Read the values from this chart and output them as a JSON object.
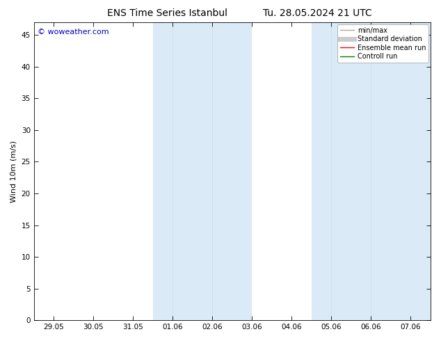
{
  "title_left": "ENS Time Series Istanbul",
  "title_right": "Tu. 28.05.2024 21 UTC",
  "ylabel": "Wind 10m (m/s)",
  "watermark": "© woweather.com",
  "ylim": [
    0,
    47
  ],
  "yticks": [
    0,
    5,
    10,
    15,
    20,
    25,
    30,
    35,
    40,
    45
  ],
  "xtick_labels": [
    "29.05",
    "30.05",
    "31.05",
    "01.06",
    "02.06",
    "03.06",
    "04.06",
    "05.06",
    "06.06",
    "07.06"
  ],
  "x_values": [
    0,
    1,
    2,
    3,
    4,
    5,
    6,
    7,
    8,
    9
  ],
  "xlim": [
    -0.5,
    9.5
  ],
  "shaded_bands": [
    {
      "x_start": 2.5,
      "x_end": 5.0
    },
    {
      "x_start": 6.5,
      "x_end": 9.5
    }
  ],
  "shade_color": "#daeaf7",
  "background_color": "#ffffff",
  "legend_entries": [
    {
      "label": "min/max",
      "color": "#aaaaaa",
      "lw": 1.0
    },
    {
      "label": "Standard deviation",
      "color": "#cccccc",
      "lw": 5
    },
    {
      "label": "Ensemble mean run",
      "color": "#ff0000",
      "lw": 1.0
    },
    {
      "label": "Controll run",
      "color": "#008000",
      "lw": 1.0
    }
  ],
  "title_fontsize": 10,
  "tick_fontsize": 7.5,
  "ylabel_fontsize": 8,
  "watermark_color": "#0000bb",
  "watermark_fontsize": 8
}
